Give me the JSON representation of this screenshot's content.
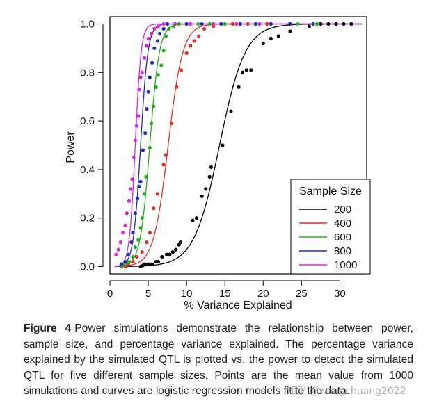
{
  "chart_data": {
    "type": "scatter",
    "xlabel": "% Variance Explained",
    "ylabel": "Power",
    "xlim": [
      0,
      33.5
    ],
    "ylim": [
      -0.03,
      1.03
    ],
    "xticks": [
      0,
      5,
      10,
      15,
      20,
      25,
      30
    ],
    "yticks": [
      0.0,
      0.2,
      0.4,
      0.6,
      0.8,
      1.0
    ],
    "ytick_labels": [
      "0.0",
      "0.2",
      "0.4",
      "0.6",
      "0.8",
      "1.0"
    ],
    "legend_title": "Sample Size",
    "legend_position": "bottom-right",
    "grid": false,
    "series": [
      {
        "name": "200",
        "color": "#000000",
        "curve": {
          "midpoint": 14.3,
          "slope": 0.6
        },
        "points": [
          [
            4.0,
            0.0
          ],
          [
            4.3,
            0.005
          ],
          [
            4.6,
            0.01
          ],
          [
            5.0,
            0.01
          ],
          [
            5.5,
            0.01
          ],
          [
            6.0,
            0.02
          ],
          [
            6.3,
            0.02
          ],
          [
            6.8,
            0.04
          ],
          [
            7.4,
            0.05
          ],
          [
            7.8,
            0.05
          ],
          [
            8.2,
            0.06
          ],
          [
            8.6,
            0.07
          ],
          [
            9.0,
            0.09
          ],
          [
            9.2,
            0.1
          ],
          [
            10.8,
            0.19
          ],
          [
            11.3,
            0.2
          ],
          [
            12.0,
            0.29
          ],
          [
            12.5,
            0.32
          ],
          [
            13.0,
            0.37
          ],
          [
            13.2,
            0.41
          ],
          [
            14.7,
            0.5
          ],
          [
            15.8,
            0.64
          ],
          [
            16.8,
            0.74
          ],
          [
            17.3,
            0.8
          ],
          [
            17.8,
            0.81
          ],
          [
            18.4,
            0.81
          ],
          [
            20.0,
            0.92
          ],
          [
            21.0,
            0.94
          ],
          [
            22.0,
            0.95
          ],
          [
            23.5,
            0.97
          ],
          [
            26.0,
            0.99
          ],
          [
            27.5,
            1.0
          ],
          [
            28.5,
            1.0
          ],
          [
            29.5,
            1.0
          ],
          [
            30.5,
            1.0
          ],
          [
            31.5,
            1.0
          ]
        ]
      },
      {
        "name": "400",
        "color": "#e0302a",
        "curve": {
          "midpoint": 7.6,
          "slope": 1.05
        },
        "points": [
          [
            1.5,
            0.0
          ],
          [
            2.0,
            0.0
          ],
          [
            2.4,
            0.01
          ],
          [
            3.0,
            0.02
          ],
          [
            3.5,
            0.04
          ],
          [
            4.2,
            0.06
          ],
          [
            4.8,
            0.1
          ],
          [
            5.2,
            0.14
          ],
          [
            5.7,
            0.24
          ],
          [
            6.2,
            0.3
          ],
          [
            7.0,
            0.42
          ],
          [
            7.3,
            0.46
          ],
          [
            8.0,
            0.59
          ],
          [
            8.7,
            0.74
          ],
          [
            9.3,
            0.81
          ],
          [
            10.0,
            0.88
          ],
          [
            10.5,
            0.91
          ],
          [
            11.0,
            0.93
          ],
          [
            11.6,
            0.95
          ],
          [
            12.3,
            0.98
          ],
          [
            13.5,
            0.99
          ],
          [
            14.5,
            1.0
          ],
          [
            16.0,
            1.0
          ],
          [
            18.0,
            1.0
          ],
          [
            20.5,
            1.0
          ],
          [
            23.5,
            1.0
          ],
          [
            26.5,
            1.0
          ]
        ]
      },
      {
        "name": "600",
        "color": "#22b020",
        "curve": {
          "midpoint": 5.2,
          "slope": 1.6
        },
        "points": [
          [
            1.5,
            0.0
          ],
          [
            2.0,
            0.01
          ],
          [
            2.5,
            0.02
          ],
          [
            3.0,
            0.04
          ],
          [
            3.3,
            0.08
          ],
          [
            3.7,
            0.11
          ],
          [
            4.0,
            0.16
          ],
          [
            4.2,
            0.2
          ],
          [
            4.5,
            0.3
          ],
          [
            4.7,
            0.37
          ],
          [
            5.2,
            0.49
          ],
          [
            5.4,
            0.59
          ],
          [
            5.7,
            0.66
          ],
          [
            6.0,
            0.74
          ],
          [
            6.3,
            0.79
          ],
          [
            6.7,
            0.83
          ],
          [
            7.0,
            0.89
          ],
          [
            7.3,
            0.95
          ],
          [
            7.7,
            0.98
          ],
          [
            8.3,
            0.99
          ],
          [
            9.0,
            1.0
          ],
          [
            10.0,
            1.0
          ],
          [
            11.5,
            1.0
          ],
          [
            13.0,
            1.0
          ],
          [
            15.0,
            1.0
          ],
          [
            17.0,
            1.0
          ],
          [
            19.0,
            1.0
          ],
          [
            21.0,
            1.0
          ],
          [
            24.5,
            1.0
          ],
          [
            27.0,
            1.0
          ]
        ]
      },
      {
        "name": "800",
        "color": "#1e2fb0",
        "curve": {
          "midpoint": 4.0,
          "slope": 2.1
        },
        "points": [
          [
            1.5,
            0.01
          ],
          [
            2.0,
            0.02
          ],
          [
            2.4,
            0.05
          ],
          [
            2.8,
            0.1
          ],
          [
            3.0,
            0.14
          ],
          [
            3.3,
            0.22
          ],
          [
            3.6,
            0.28
          ],
          [
            3.8,
            0.33
          ],
          [
            4.0,
            0.35
          ],
          [
            4.3,
            0.48
          ],
          [
            4.6,
            0.55
          ],
          [
            4.8,
            0.65
          ],
          [
            5.0,
            0.72
          ],
          [
            5.2,
            0.78
          ],
          [
            5.5,
            0.84
          ],
          [
            5.8,
            0.9
          ],
          [
            6.2,
            0.93
          ],
          [
            6.5,
            0.96
          ],
          [
            7.0,
            0.98
          ],
          [
            7.5,
            1.0
          ],
          [
            8.5,
            1.0
          ],
          [
            10.0,
            1.0
          ],
          [
            12.0,
            1.0
          ],
          [
            14.5,
            1.0
          ],
          [
            17.0,
            1.0
          ],
          [
            19.0,
            1.0
          ],
          [
            21.0,
            1.0
          ],
          [
            23.5,
            1.0
          ],
          [
            26.5,
            1.0
          ]
        ]
      },
      {
        "name": "1000",
        "color": "#e021e0",
        "curve": {
          "midpoint": 3.3,
          "slope": 2.6
        },
        "points": [
          [
            0.8,
            0.05
          ],
          [
            1.1,
            0.07
          ],
          [
            1.4,
            0.1
          ],
          [
            1.7,
            0.14
          ],
          [
            2.0,
            0.17
          ],
          [
            2.2,
            0.22
          ],
          [
            2.5,
            0.27
          ],
          [
            2.7,
            0.32
          ],
          [
            2.9,
            0.36
          ],
          [
            3.1,
            0.45
          ],
          [
            3.3,
            0.52
          ],
          [
            3.5,
            0.58
          ],
          [
            3.7,
            0.62
          ],
          [
            3.8,
            0.73
          ],
          [
            4.0,
            0.78
          ],
          [
            4.2,
            0.8
          ],
          [
            4.5,
            0.86
          ],
          [
            4.8,
            0.91
          ],
          [
            5.0,
            0.94
          ],
          [
            5.4,
            0.96
          ],
          [
            5.8,
            0.98
          ],
          [
            6.3,
            0.99
          ],
          [
            7.0,
            1.0
          ],
          [
            8.5,
            1.0
          ],
          [
            10.5,
            1.0
          ],
          [
            13.5,
            1.0
          ],
          [
            16.5,
            1.0
          ],
          [
            19.5,
            1.0
          ]
        ]
      }
    ]
  },
  "caption": {
    "label": "Figure 4",
    "text": "Power simulations demonstrate the relationship between power, sample size, and percentage variance explained. The percentage variance explained by the simulated QTL is plotted vs. the power to detect the simulated QTL for five different sample sizes. Points are the mean value from 1000 simulations and curves are logistic regression models fit to the data."
  },
  "watermark": "知乎 @wangchuang2022"
}
